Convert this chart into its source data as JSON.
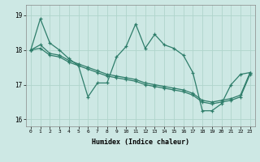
{
  "xlabel": "Humidex (Indice chaleur)",
  "background_color": "#cde8e4",
  "grid_color": "#b0d4cc",
  "line_color": "#2e7d6a",
  "xlim": [
    -0.5,
    23.5
  ],
  "ylim": [
    15.8,
    19.3
  ],
  "yticks": [
    16,
    17,
    18,
    19
  ],
  "xticks": [
    0,
    1,
    2,
    3,
    4,
    5,
    6,
    7,
    8,
    9,
    10,
    11,
    12,
    13,
    14,
    15,
    16,
    17,
    18,
    19,
    20,
    21,
    22,
    23
  ],
  "line1": [
    18.0,
    18.9,
    18.2,
    18.0,
    17.75,
    17.55,
    16.65,
    17.05,
    17.05,
    17.8,
    18.1,
    18.75,
    18.05,
    18.45,
    18.15,
    18.05,
    17.85,
    17.35,
    16.25,
    16.25,
    16.45,
    17.0,
    17.3,
    17.35
  ],
  "line2": [
    18.0,
    18.15,
    17.9,
    17.85,
    17.7,
    17.6,
    17.5,
    17.4,
    17.3,
    17.25,
    17.2,
    17.15,
    17.05,
    17.0,
    16.95,
    16.9,
    16.85,
    16.75,
    16.55,
    16.5,
    16.55,
    16.6,
    16.7,
    17.35
  ],
  "line3": [
    18.0,
    18.05,
    17.85,
    17.8,
    17.65,
    17.55,
    17.45,
    17.35,
    17.25,
    17.2,
    17.15,
    17.1,
    17.0,
    16.95,
    16.9,
    16.85,
    16.8,
    16.7,
    16.5,
    16.45,
    16.5,
    16.55,
    16.65,
    17.3
  ]
}
